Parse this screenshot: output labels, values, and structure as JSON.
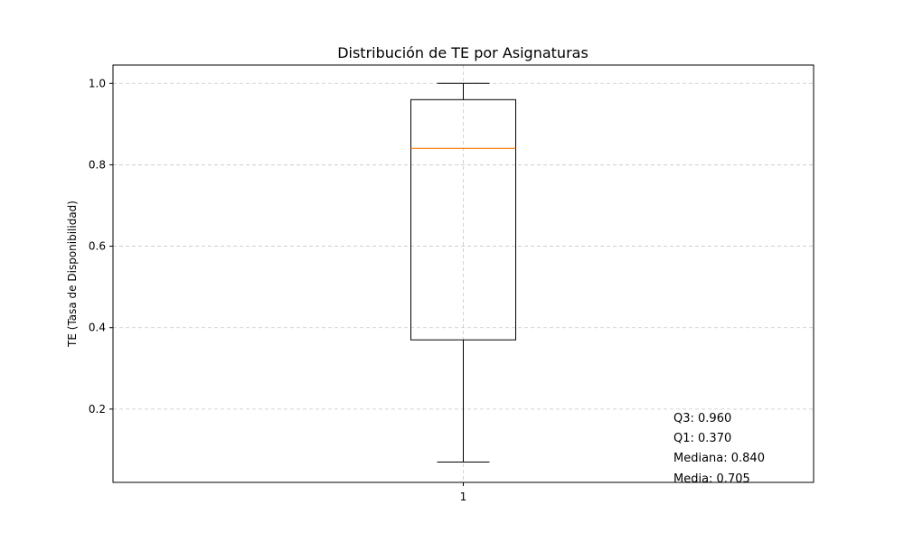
{
  "chart_data": {
    "type": "boxplot",
    "title": "Distribución de TE por Asignaturas",
    "xlabel": "",
    "ylabel": "TE (Tasa de Disponibilidad)",
    "ylim": [
      0.02,
      1.045
    ],
    "yticks": [
      0.2,
      0.4,
      0.6,
      0.8,
      1.0
    ],
    "ytick_labels": [
      "0.2",
      "0.4",
      "0.6",
      "0.8",
      "1.0"
    ],
    "categories": [
      "1"
    ],
    "grid": true,
    "box": {
      "whisker_low": 0.07,
      "q1": 0.37,
      "median": 0.84,
      "q3": 0.96,
      "whisker_high": 1.0
    },
    "annotations": [
      "Q3: 0.960",
      "Q1: 0.370",
      "Mediana: 0.840",
      "Media: 0.705"
    ],
    "colors": {
      "box": "#000000",
      "median": "#ff7f0e",
      "grid": "#b0b0b0"
    }
  }
}
